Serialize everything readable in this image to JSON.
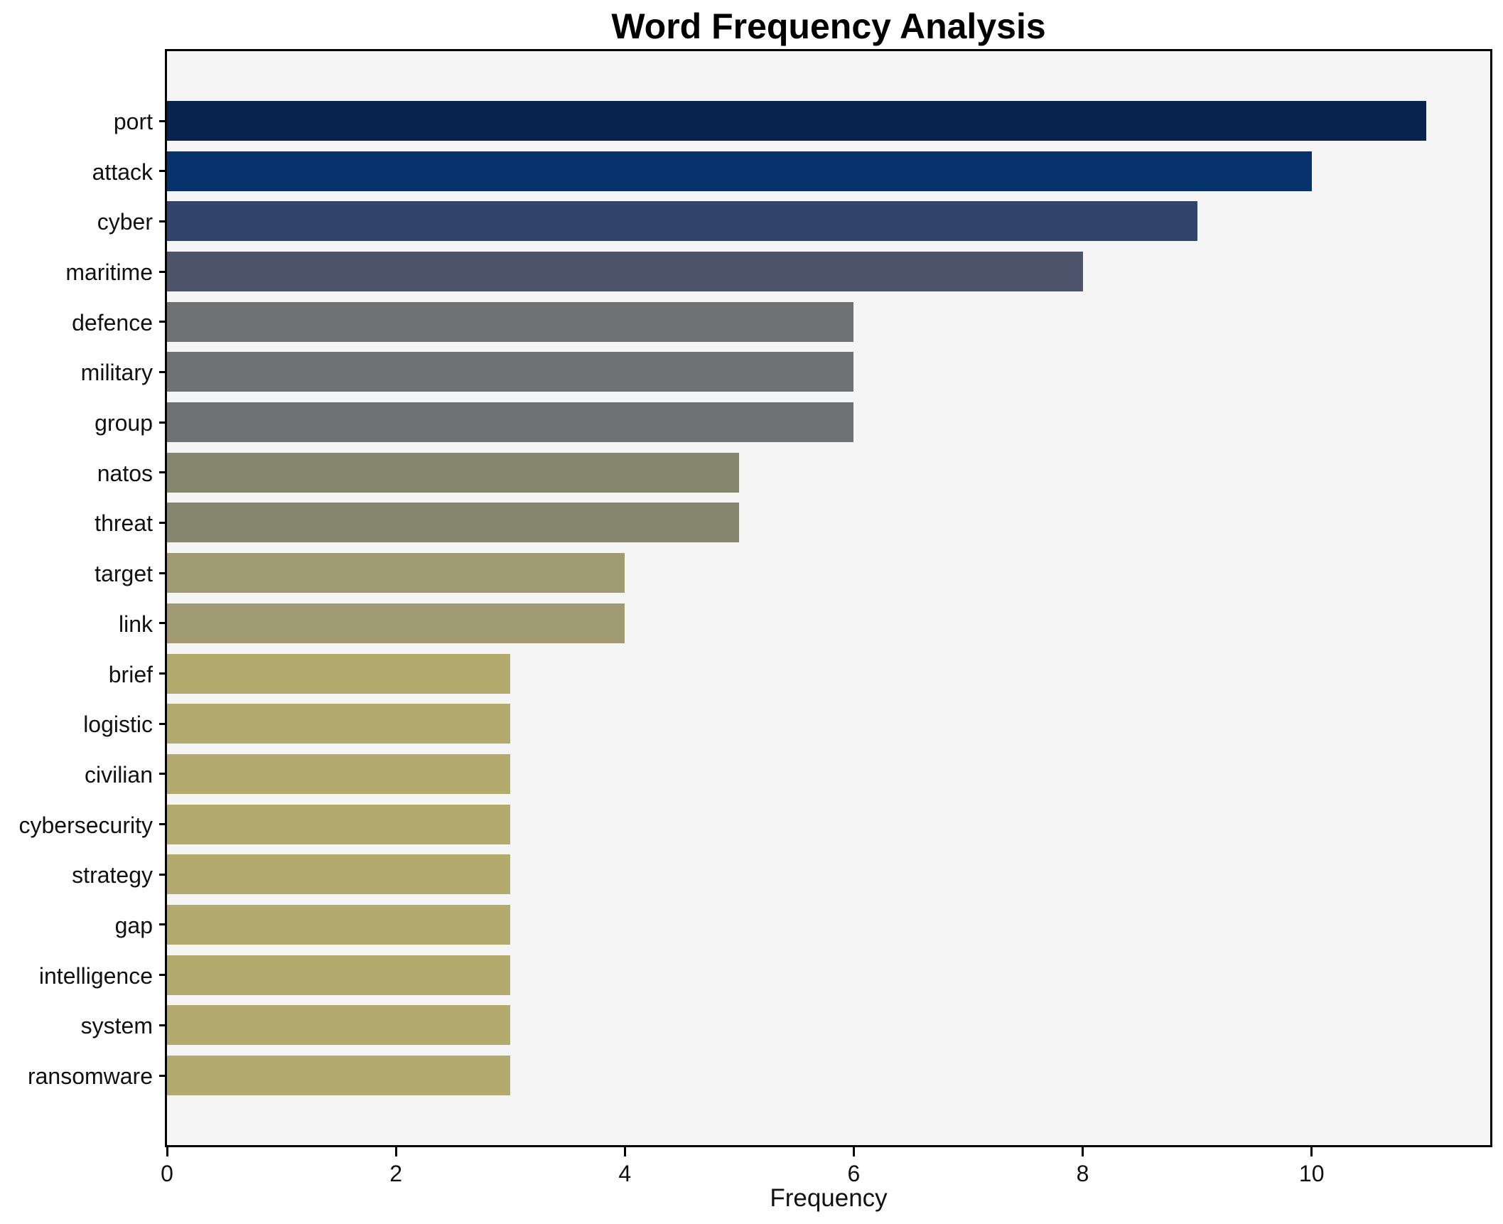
{
  "chart_data": {
    "type": "bar",
    "orientation": "horizontal",
    "title": "Word Frequency Analysis",
    "xlabel": "Frequency",
    "ylabel": "",
    "categories": [
      "port",
      "attack",
      "cyber",
      "maritime",
      "defence",
      "military",
      "group",
      "natos",
      "threat",
      "target",
      "link",
      "brief",
      "logistic",
      "civilian",
      "cybersecurity",
      "strategy",
      "gap",
      "intelligence",
      "system",
      "ransomware"
    ],
    "values": [
      11,
      10,
      9,
      8,
      6,
      6,
      6,
      5,
      5,
      4,
      4,
      3,
      3,
      3,
      3,
      3,
      3,
      3,
      3,
      3
    ],
    "bar_colors": [
      "#07234e",
      "#06336e",
      "#32446c",
      "#4c536b",
      "#707173",
      "#707173",
      "#707173",
      "#86876f",
      "#86876f",
      "#a09b72",
      "#a09b72",
      "#b3aa6e",
      "#b3aa6e",
      "#b3aa6e",
      "#b3aa6e",
      "#b3aa6e",
      "#b3aa6e",
      "#b3aa6e",
      "#b3aa6e",
      "#b3aa6e"
    ],
    "xlim": [
      0,
      11.56
    ],
    "xticks": [
      0,
      2,
      4,
      6,
      8,
      10
    ],
    "x_tick_labels": [
      "0",
      "2",
      "4",
      "6",
      "8",
      "10"
    ],
    "grid": false,
    "legend": null,
    "plot_background": "#f5f5f6",
    "figure_background": "#ffffff",
    "spine_color": "#000000",
    "text_color": "#111111"
  }
}
